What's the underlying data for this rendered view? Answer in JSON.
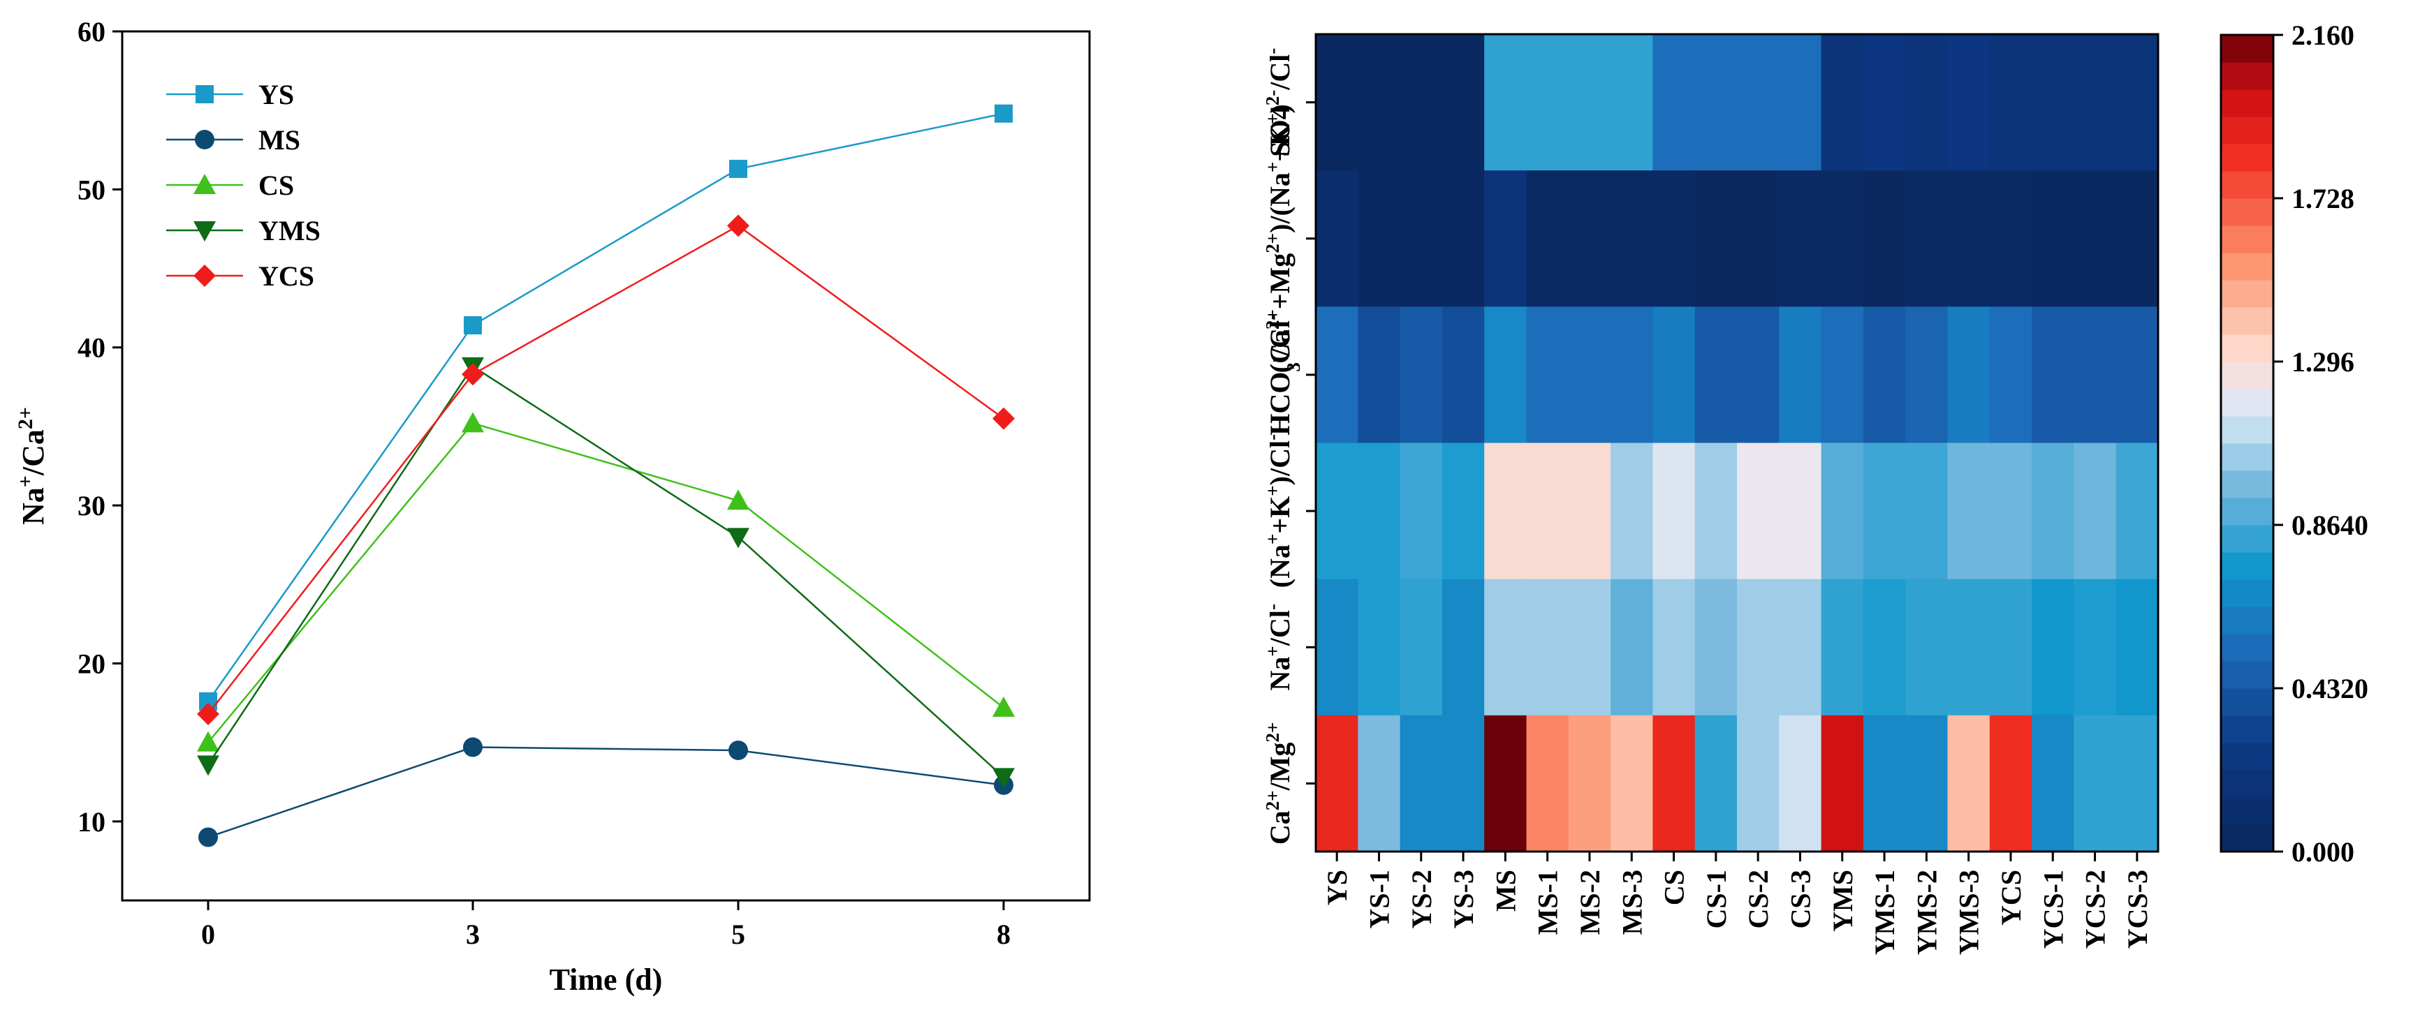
{
  "chart_data": [
    {
      "type": "line",
      "title": "",
      "xlabel": "Time (d)",
      "ylabel": "Na⁺/Ca²⁺",
      "x": [
        0,
        3,
        5,
        8
      ],
      "x_ticks": [
        "0",
        "3",
        "5",
        "8"
      ],
      "ylim": [
        5,
        60
      ],
      "y_ticks": [
        10,
        20,
        30,
        40,
        50,
        60
      ],
      "legend_position": "top-left",
      "series": [
        {
          "name": "YS",
          "values": [
            17.6,
            41.4,
            51.3,
            54.8
          ],
          "color": "#1a9ac9",
          "marker": "square"
        },
        {
          "name": "MS",
          "values": [
            9.0,
            14.7,
            14.5,
            12.3
          ],
          "color": "#0d4a72",
          "marker": "circle"
        },
        {
          "name": "CS",
          "values": [
            15.0,
            35.2,
            30.3,
            17.2
          ],
          "color": "#3fc01a",
          "marker": "triangle-up"
        },
        {
          "name": "YMS",
          "values": [
            13.6,
            38.8,
            28.0,
            12.8
          ],
          "color": "#0e6b16",
          "marker": "triangle-down"
        },
        {
          "name": "YCS",
          "values": [
            16.8,
            38.3,
            47.7,
            35.5
          ],
          "color": "#f01c1c",
          "marker": "diamond"
        }
      ]
    },
    {
      "type": "heatmap",
      "title": "",
      "columns": [
        "YS",
        "YS-1",
        "YS-2",
        "YS-3",
        "MS",
        "MS-1",
        "MS-2",
        "MS-3",
        "CS",
        "CS-1",
        "CS-2",
        "CS-3",
        "YMS",
        "YMS-1",
        "YMS-2",
        "YMS-3",
        "YCS",
        "YCS-1",
        "YCS-2",
        "YCS-3"
      ],
      "rows": [
        {
          "label_parts": [
            [
              "SO4",
              ""
            ],
            [
              "2-",
              "sup"
            ],
            [
              "/Cl",
              ""
            ],
            [
              "-",
              "sup"
            ]
          ],
          "values": [
            0.02,
            0.02,
            0.02,
            0.02,
            0.82,
            0.82,
            0.82,
            0.82,
            0.55,
            0.55,
            0.55,
            0.55,
            0.2,
            0.25,
            0.2,
            0.25,
            0.2,
            0.2,
            0.2,
            0.2
          ]
        },
        {
          "label_parts": [
            [
              "(Ca",
              ""
            ],
            [
              "2+",
              "sup"
            ],
            [
              "+Mg",
              ""
            ],
            [
              "2+",
              "sup"
            ],
            [
              ")/(Na",
              ""
            ],
            [
              "+",
              "sup"
            ],
            [
              "+K",
              ""
            ],
            [
              "+",
              "sup"
            ],
            [
              ")",
              ""
            ]
          ],
          "values": [
            0.1,
            0.02,
            0.02,
            0.02,
            0.2,
            0.04,
            0.04,
            0.04,
            0.04,
            0.01,
            0.01,
            0.04,
            0.04,
            0.01,
            0.04,
            0.04,
            0.04,
            0.02,
            0.02,
            0.02
          ]
        },
        {
          "label_parts": [
            [
              "HCO",
              ""
            ],
            [
              "3",
              "sub"
            ],
            [
              "-",
              "sup"
            ],
            [
              "/Cl",
              ""
            ],
            [
              "-",
              "sup"
            ]
          ],
          "values": [
            0.55,
            0.38,
            0.45,
            0.38,
            0.68,
            0.55,
            0.55,
            0.55,
            0.62,
            0.45,
            0.45,
            0.62,
            0.55,
            0.45,
            0.5,
            0.62,
            0.55,
            0.45,
            0.45,
            0.45
          ]
        },
        {
          "label_parts": [
            [
              "(Na",
              ""
            ],
            [
              "+",
              "sup"
            ],
            [
              "+K",
              ""
            ],
            [
              "+",
              "sup"
            ],
            [
              ")/Cl",
              ""
            ],
            [
              "-",
              "sup"
            ]
          ],
          "values": [
            0.78,
            0.78,
            0.85,
            0.78,
            1.3,
            1.3,
            1.3,
            1.05,
            1.18,
            1.05,
            1.22,
            1.22,
            0.9,
            0.85,
            0.85,
            0.95,
            0.95,
            0.9,
            0.95,
            0.85
          ]
        },
        {
          "label_parts": [
            [
              "Na",
              ""
            ],
            [
              "+",
              "sup"
            ],
            [
              "/Cl",
              ""
            ],
            [
              "-",
              "sup"
            ]
          ],
          "values": [
            0.68,
            0.78,
            0.82,
            0.68,
            1.05,
            1.05,
            1.05,
            0.92,
            1.05,
            0.98,
            1.05,
            1.05,
            0.82,
            0.78,
            0.82,
            0.82,
            0.82,
            0.75,
            0.78,
            0.75
          ]
        },
        {
          "label_parts": [
            [
              "Ca",
              ""
            ],
            [
              "2+",
              "sup"
            ],
            [
              "/Mg",
              ""
            ],
            [
              "2+",
              "sup"
            ]
          ],
          "values": [
            1.88,
            0.98,
            0.68,
            0.68,
            2.16,
            1.6,
            1.52,
            1.42,
            1.88,
            0.82,
            1.05,
            1.15,
            2.0,
            0.68,
            0.68,
            1.42,
            1.85,
            0.68,
            0.82,
            0.82
          ]
        }
      ],
      "colorbar": {
        "min": 0.0,
        "max": 2.16,
        "tick_labels": [
          "0.000",
          "0.4320",
          "0.8640",
          "1.296",
          "1.728",
          "2.160"
        ]
      }
    }
  ]
}
